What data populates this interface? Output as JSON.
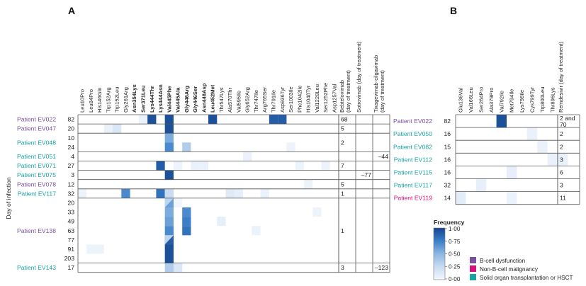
{
  "panels": {
    "a": {
      "label": "A",
      "mutations": [
        {
          "name": "Leu10Pro",
          "bold": false
        },
        {
          "name": "Leu84Pro",
          "bold": false
        },
        {
          "name": "His146Gln",
          "bold": false
        },
        {
          "name": "Trp152Arg",
          "bold": false
        },
        {
          "name": "Trp152Leu",
          "bold": false
        },
        {
          "name": "Gly261Arg",
          "bold": false
        },
        {
          "name": "Asn354Lys",
          "bold": true
        },
        {
          "name": "Ser371Leu",
          "bold": true
        },
        {
          "name": "Lys444Thr",
          "bold": true
        },
        {
          "name": "Lys444Asn",
          "bold": true
        },
        {
          "name": "Val445Phe",
          "bold": true
        },
        {
          "name": "Val445Ala",
          "bold": true
        },
        {
          "name": "Gly446Arg",
          "bold": true
        },
        {
          "name": "Gly446Ser",
          "bold": true
        },
        {
          "name": "Asn448Asp",
          "bold": true
        },
        {
          "name": "Leu452Met",
          "bold": true
        },
        {
          "name": "Thr547Lys",
          "bold": false
        },
        {
          "name": "Ala570Thr",
          "bold": false
        },
        {
          "name": "Val595Ile",
          "bold": false
        },
        {
          "name": "Gly652Arg",
          "bold": false
        },
        {
          "name": "Thr747Ile",
          "bold": false
        },
        {
          "name": "Arg765Ser",
          "bold": false
        },
        {
          "name": "Thr791Ile",
          "bold": false
        },
        {
          "name": "Asp936Tyr",
          "bold": false
        },
        {
          "name": "Ser1003Ile",
          "bold": false
        },
        {
          "name": "Phe1042Ile",
          "bold": false
        },
        {
          "name": "His1048Tyr",
          "bold": false
        },
        {
          "name": "Val1228Leu",
          "bold": false
        },
        {
          "name": "Ser1252Phe",
          "bold": false
        },
        {
          "name": "Asp1257Val",
          "bold": false
        }
      ],
      "treatments": [
        "Bebtelovimab (day of treatment)",
        "Sotrovimab (day of treatment)",
        "Tixagevimab-cilgavimab (day of treatment)"
      ],
      "y_axis_label": "Day of infection",
      "patients": [
        {
          "name": "Patient EV022",
          "group": "bcell",
          "days": [
            "82"
          ],
          "treat": [
            "68",
            "",
            ""
          ]
        },
        {
          "name": "Patient EV047",
          "group": "bcell",
          "days": [
            "20"
          ],
          "treat": [
            "5",
            "",
            ""
          ]
        },
        {
          "name": "Patient EV048",
          "group": "sot",
          "days": [
            "10",
            "24"
          ],
          "treat": [
            "2",
            "",
            ""
          ]
        },
        {
          "name": "Patient EV051",
          "group": "sot",
          "days": [
            "4"
          ],
          "treat": [
            "",
            "",
            "–44"
          ]
        },
        {
          "name": "Patient EV071",
          "group": "sot",
          "days": [
            "27"
          ],
          "treat": [
            "7",
            "",
            ""
          ]
        },
        {
          "name": "Patient EV075",
          "group": "sot",
          "days": [
            "3"
          ],
          "treat": [
            "",
            "–77",
            ""
          ]
        },
        {
          "name": "Patient EV078",
          "group": "bcell",
          "days": [
            "12"
          ],
          "treat": [
            "5",
            "",
            ""
          ]
        },
        {
          "name": "Patient EV117",
          "group": "sot",
          "days": [
            "32"
          ],
          "treat": [
            "1",
            "",
            ""
          ]
        },
        {
          "name": "Patient EV138",
          "group": "bcell",
          "days": [
            "20",
            "33",
            "49",
            "63",
            "77",
            "91",
            "203"
          ],
          "treat": [
            "1",
            "",
            ""
          ]
        },
        {
          "name": "Patient EV143",
          "group": "sot",
          "days": [
            "17"
          ],
          "treat": [
            "3",
            "",
            "–123"
          ]
        }
      ]
    },
    "b": {
      "label": "B",
      "mutations": [
        {
          "name": "Glu136Val",
          "bold": false
        },
        {
          "name": "Val166Leu",
          "bold": false
        },
        {
          "name": "Ser264Pro",
          "bold": false
        },
        {
          "name": "Ala379Pro",
          "bold": false
        },
        {
          "name": "Val792Ile",
          "bold": false
        },
        {
          "name": "Met794Ile",
          "bold": false
        },
        {
          "name": "Lys798Ile",
          "bold": false
        },
        {
          "name": "Cys799Tyr",
          "bold": false
        },
        {
          "name": "Trp800Leu",
          "bold": false
        },
        {
          "name": "Thr896Lys",
          "bold": false
        }
      ],
      "treatments": [
        "Remdesivir (day of treatment)"
      ],
      "patients": [
        {
          "name": "Patient EV022",
          "group": "bcell",
          "days": [
            "82"
          ],
          "treat": [
            "2 and 70"
          ]
        },
        {
          "name": "Patient EV050",
          "group": "sot",
          "days": [
            "16"
          ],
          "treat": [
            "2"
          ]
        },
        {
          "name": "Patient EV082",
          "group": "sot",
          "days": [
            "15"
          ],
          "treat": [
            "2"
          ]
        },
        {
          "name": "Patient EV112",
          "group": "sot",
          "days": [
            "16"
          ],
          "treat": [
            "3"
          ]
        },
        {
          "name": "Patient EV115",
          "group": "sot",
          "days": [
            "16"
          ],
          "treat": [
            "6"
          ]
        },
        {
          "name": "Patient EV117",
          "group": "sot",
          "days": [
            "32"
          ],
          "treat": [
            "3"
          ]
        },
        {
          "name": "Patient EV119",
          "group": "malig",
          "days": [
            "14"
          ],
          "treat": [
            "11"
          ]
        }
      ]
    }
  },
  "legend": {
    "title": "Frequency",
    "ticks": [
      "1·00",
      "0·75",
      "0·50",
      "0·25",
      "0·00"
    ],
    "groups": [
      {
        "key": "bcell",
        "label": "B-cell dysfunction",
        "color": "#7b4fa0"
      },
      {
        "key": "malig",
        "label": "Non-B-cell malignancy",
        "color": "#d6127a"
      },
      {
        "key": "sot",
        "label": "Solid organ transplantation or HSCT",
        "color": "#1aa3a3"
      }
    ],
    "scale_colors": [
      "#f4f7fd",
      "#c9dcf1",
      "#8db7e2",
      "#3a7fc8",
      "#15458f"
    ]
  },
  "chart_data": [
    {
      "type": "heatmap",
      "title": "A",
      "note": "Within-host spike mutation frequency per sample (0-1)",
      "cells": [
        [
          0,
          7,
          0.05
        ],
        [
          0,
          8,
          0.95
        ],
        [
          0,
          10,
          0.95
        ],
        [
          0,
          15,
          0.95
        ],
        [
          0,
          22,
          0.9
        ],
        [
          0,
          23,
          0.9
        ],
        [
          1,
          3,
          0.06
        ],
        [
          1,
          4,
          0.15
        ],
        [
          1,
          10,
          0.95
        ],
        [
          2,
          10,
          0.55
        ],
        [
          3,
          10,
          0.7
        ],
        [
          3,
          12,
          0.35
        ],
        [
          3,
          24,
          0.04
        ],
        [
          4,
          19,
          0.05
        ],
        [
          5,
          9,
          0.9
        ],
        [
          5,
          11,
          0.03
        ],
        [
          5,
          13,
          0.06
        ],
        [
          5,
          14,
          0.06
        ],
        [
          5,
          25,
          0.04
        ],
        [
          5,
          28,
          0.04
        ],
        [
          6,
          10,
          0.95
        ],
        [
          7,
          26,
          0.04
        ],
        [
          8,
          0,
          0.04
        ],
        [
          8,
          5,
          0.7
        ],
        [
          8,
          9,
          0.8
        ],
        [
          8,
          10,
          0.25
        ],
        [
          8,
          17,
          0.12
        ],
        [
          8,
          18,
          0.08
        ],
        [
          8,
          21,
          0.05
        ],
        [
          9,
          10,
          0.5
        ],
        [
          9,
          11,
          0.02
        ],
        [
          10,
          10,
          0.55
        ],
        [
          10,
          12,
          0.7
        ],
        [
          10,
          27,
          0.04
        ],
        [
          11,
          10,
          0.6
        ],
        [
          11,
          12,
          0.75
        ],
        [
          11,
          16,
          0.08
        ],
        [
          12,
          10,
          0.7
        ],
        [
          12,
          12,
          0.8
        ],
        [
          12,
          20,
          0.05
        ],
        [
          13,
          10,
          0.85
        ],
        [
          14,
          1,
          0.04
        ],
        [
          14,
          2,
          0.04
        ],
        [
          14,
          10,
          0.95
        ],
        [
          15,
          10,
          0.95
        ],
        [
          16,
          10,
          0.35
        ],
        [
          16,
          11,
          0.15
        ]
      ],
      "split_cells": [
        {
          "row": 9,
          "col": 10,
          "values": [
            0.6,
            0.3
          ]
        },
        {
          "row": 13,
          "col": 10,
          "values": [
            0.9,
            0.3
          ]
        }
      ]
    },
    {
      "type": "heatmap",
      "title": "B",
      "note": "Within-host nsp12 mutation frequency per sample (0-1)",
      "cells": [
        [
          0,
          4,
          0.95
        ],
        [
          1,
          7,
          0.06
        ],
        [
          2,
          8,
          0.06
        ],
        [
          3,
          9,
          0.06
        ],
        [
          3,
          10,
          0.06
        ],
        [
          4,
          5,
          0.07
        ],
        [
          5,
          2,
          0.07
        ],
        [
          6,
          0,
          0.1
        ],
        [
          6,
          5,
          0.05
        ]
      ]
    }
  ]
}
